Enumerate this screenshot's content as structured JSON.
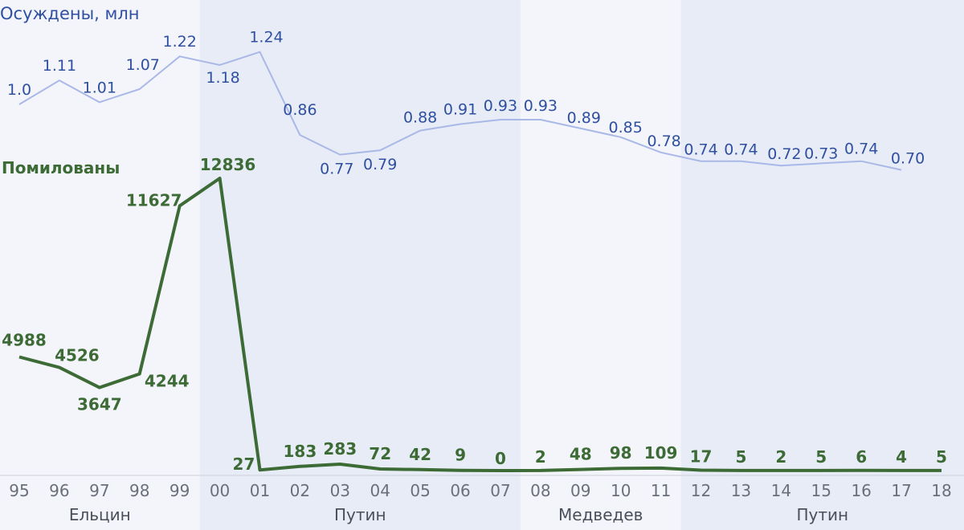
{
  "chart_data": {
    "type": "line",
    "categories": [
      "95",
      "96",
      "97",
      "98",
      "99",
      "00",
      "01",
      "02",
      "03",
      "04",
      "05",
      "06",
      "07",
      "08",
      "09",
      "10",
      "11",
      "12",
      "13",
      "14",
      "15",
      "16",
      "17",
      "18"
    ],
    "series": [
      {
        "name": "Осуждены, млн",
        "color": "#a9b8e6",
        "label_color": "#2f4fa0",
        "values": [
          1.0,
          1.11,
          1.01,
          1.07,
          1.22,
          1.18,
          1.24,
          0.86,
          0.77,
          0.79,
          0.88,
          0.91,
          0.93,
          0.93,
          0.89,
          0.85,
          0.78,
          0.74,
          0.74,
          0.72,
          0.73,
          0.74,
          0.7,
          null
        ],
        "labels": [
          "1.0",
          "1.11",
          "1.01",
          "1.07",
          "1.22",
          "1.18",
          "1.24",
          "0.86",
          "0.77",
          "0.79",
          "0.88",
          "0.91",
          "0.93",
          "0.93",
          "0.89",
          "0.85",
          "0.78",
          "0.74",
          "0.74",
          "0.72",
          "0.73",
          "0.74",
          "0.70",
          ""
        ]
      },
      {
        "name": "Помилованы",
        "color": "#3d6b35",
        "label_color": "#3d6b35",
        "values": [
          4988,
          4526,
          3647,
          4244,
          11627,
          12836,
          27,
          183,
          283,
          72,
          42,
          9,
          0,
          2,
          48,
          98,
          109,
          17,
          5,
          2,
          5,
          6,
          4,
          5
        ],
        "labels": [
          "4988",
          "4526",
          "3647",
          "4244",
          "11627",
          "12836",
          "27",
          "183",
          "283",
          "72",
          "42",
          "9",
          "0",
          "2",
          "48",
          "98",
          "109",
          "17",
          "5",
          "2",
          "5",
          "6",
          "4",
          "5"
        ]
      }
    ],
    "eras": [
      {
        "label": "Ельцин",
        "from": "95",
        "to": "99",
        "shade": "#f3f5fb"
      },
      {
        "label": "Путин",
        "from": "00",
        "to": "07",
        "shade": "#e8ecf7"
      },
      {
        "label": "Медведев",
        "from": "08",
        "to": "11",
        "shade": "#f3f5fb"
      },
      {
        "label": "Путин",
        "from": "12",
        "to": "18",
        "shade": "#e8ecf7"
      }
    ],
    "grid": false,
    "legend": "inline-left"
  }
}
